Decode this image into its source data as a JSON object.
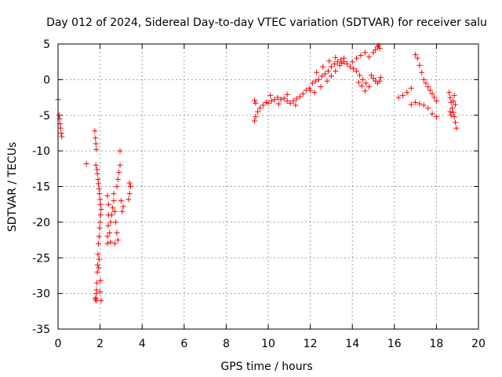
{
  "chart_data": {
    "type": "scatter",
    "title": "Day 012 of 2024, Sidereal Day-to-day VTEC variation (SDTVAR) for receiver salu",
    "xlabel": "GPS time / hours",
    "ylabel": "SDTVAR / TECUs",
    "xlim": [
      0,
      20
    ],
    "ylim": [
      -35,
      5
    ],
    "xticks": [
      0,
      2,
      4,
      6,
      8,
      10,
      12,
      14,
      16,
      18,
      20
    ],
    "yticks": [
      -35,
      -30,
      -25,
      -20,
      -15,
      -10,
      -5,
      0,
      5
    ],
    "grid": true,
    "marker": "+",
    "colors": {
      "series": "#ff0000",
      "axis": "#000000",
      "grid": "#a0a0a0"
    },
    "series": [
      {
        "name": "SDTVAR",
        "points": [
          [
            0.0,
            -2.8
          ],
          [
            0.05,
            -5.0
          ],
          [
            0.08,
            -5.5
          ],
          [
            0.1,
            -6.2
          ],
          [
            0.12,
            -6.8
          ],
          [
            0.15,
            -7.5
          ],
          [
            0.18,
            -8.0
          ],
          [
            1.35,
            -11.8
          ],
          [
            1.75,
            -7.2
          ],
          [
            1.78,
            -8.2
          ],
          [
            1.8,
            -9.0
          ],
          [
            1.82,
            -9.8
          ],
          [
            1.8,
            -12.0
          ],
          [
            1.85,
            -12.6
          ],
          [
            1.87,
            -13.2
          ],
          [
            1.9,
            -14.0
          ],
          [
            1.92,
            -14.6
          ],
          [
            1.95,
            -15.3
          ],
          [
            1.97,
            -16.0
          ],
          [
            2.0,
            -16.8
          ],
          [
            2.02,
            -17.5
          ],
          [
            2.05,
            -18.2
          ],
          [
            2.03,
            -19.0
          ],
          [
            2.0,
            -20.0
          ],
          [
            1.98,
            -20.8
          ],
          [
            1.95,
            -22.0
          ],
          [
            1.92,
            -23.0
          ],
          [
            1.9,
            -24.5
          ],
          [
            1.88,
            -26.0
          ],
          [
            1.87,
            -27.0
          ],
          [
            1.85,
            -28.5
          ],
          [
            1.83,
            -29.5
          ],
          [
            1.82,
            -30.0
          ],
          [
            1.8,
            -30.6
          ],
          [
            1.82,
            -31.0
          ],
          [
            1.78,
            -30.8
          ],
          [
            2.0,
            -29.8
          ],
          [
            2.05,
            -31.0
          ],
          [
            2.02,
            -28.2
          ],
          [
            1.95,
            -25.2
          ],
          [
            1.93,
            -26.4
          ],
          [
            2.35,
            -16.3
          ],
          [
            2.4,
            -17.5
          ],
          [
            2.4,
            -19.0
          ],
          [
            2.38,
            -20.5
          ],
          [
            2.35,
            -22.0
          ],
          [
            2.35,
            -23.0
          ],
          [
            2.45,
            -21.5
          ],
          [
            2.5,
            -20.0
          ],
          [
            2.55,
            -19.0
          ],
          [
            2.6,
            -18.0
          ],
          [
            2.65,
            -17.0
          ],
          [
            2.7,
            -18.5
          ],
          [
            2.75,
            -20.0
          ],
          [
            2.8,
            -21.5
          ],
          [
            2.85,
            -22.5
          ],
          [
            2.7,
            -23.0
          ],
          [
            2.8,
            -15.0
          ],
          [
            2.85,
            -14.0
          ],
          [
            2.9,
            -13.0
          ],
          [
            2.95,
            -12.0
          ],
          [
            2.95,
            -10.0
          ],
          [
            3.0,
            -17.0
          ],
          [
            3.1,
            -17.8
          ],
          [
            3.05,
            -18.5
          ],
          [
            2.65,
            -16.0
          ],
          [
            2.5,
            -22.8
          ],
          [
            3.4,
            -14.5
          ],
          [
            3.45,
            -15.0
          ],
          [
            3.4,
            -16.0
          ],
          [
            3.35,
            -16.8
          ],
          [
            9.35,
            -5.8
          ],
          [
            9.4,
            -5.2
          ],
          [
            9.5,
            -4.5
          ],
          [
            9.6,
            -4.0
          ],
          [
            9.75,
            -3.6
          ],
          [
            9.9,
            -3.2
          ],
          [
            10.0,
            -3.3
          ],
          [
            10.15,
            -3.0
          ],
          [
            10.3,
            -2.8
          ],
          [
            10.45,
            -2.5
          ],
          [
            10.6,
            -2.8
          ],
          [
            10.75,
            -2.6
          ],
          [
            10.9,
            -3.0
          ],
          [
            11.05,
            -3.3
          ],
          [
            11.2,
            -3.0
          ],
          [
            11.35,
            -2.7
          ],
          [
            11.5,
            -2.4
          ],
          [
            11.65,
            -2.0
          ],
          [
            11.8,
            -1.5
          ],
          [
            11.95,
            -1.2
          ],
          [
            9.35,
            -2.9
          ],
          [
            9.4,
            -3.3
          ],
          [
            10.1,
            -2.2
          ],
          [
            10.5,
            -3.4
          ],
          [
            10.9,
            -2.1
          ],
          [
            11.3,
            -3.6
          ],
          [
            12.0,
            -1.5
          ],
          [
            12.1,
            -0.5
          ],
          [
            12.25,
            -0.2
          ],
          [
            12.4,
            0.0
          ],
          [
            12.55,
            0.5
          ],
          [
            12.7,
            0.8
          ],
          [
            12.85,
            1.2
          ],
          [
            13.0,
            1.8
          ],
          [
            13.15,
            2.2
          ],
          [
            13.3,
            2.5
          ],
          [
            13.45,
            2.8
          ],
          [
            13.6,
            2.5
          ],
          [
            13.75,
            2.2
          ],
          [
            13.9,
            1.8
          ],
          [
            14.05,
            1.5
          ],
          [
            14.2,
            1.2
          ],
          [
            14.35,
            0.6
          ],
          [
            14.5,
            0.0
          ],
          [
            14.65,
            -0.5
          ],
          [
            14.8,
            -1.0
          ],
          [
            12.2,
            -1.8
          ],
          [
            12.5,
            -1.0
          ],
          [
            12.8,
            -0.2
          ],
          [
            13.0,
            0.5
          ],
          [
            13.2,
            1.2
          ],
          [
            13.4,
            2.0
          ],
          [
            13.6,
            3.0
          ],
          [
            13.5,
            2.3
          ],
          [
            12.3,
            1.0
          ],
          [
            12.6,
            1.8
          ],
          [
            12.9,
            2.6
          ],
          [
            13.2,
            3.1
          ],
          [
            14.0,
            2.5
          ],
          [
            14.2,
            3.0
          ],
          [
            14.4,
            3.4
          ],
          [
            14.6,
            3.8
          ],
          [
            14.8,
            3.2
          ],
          [
            15.0,
            3.8
          ],
          [
            15.1,
            4.2
          ],
          [
            15.2,
            4.6
          ],
          [
            15.25,
            4.8
          ],
          [
            15.3,
            4.4
          ],
          [
            14.9,
            0.6
          ],
          [
            15.0,
            0.2
          ],
          [
            15.1,
            -0.2
          ],
          [
            15.2,
            -0.5
          ],
          [
            15.3,
            -0.2
          ],
          [
            15.35,
            0.3
          ],
          [
            14.3,
            -0.4
          ],
          [
            14.45,
            -0.9
          ],
          [
            14.6,
            -1.6
          ],
          [
            16.2,
            -2.5
          ],
          [
            16.4,
            -2.2
          ],
          [
            16.6,
            -1.8
          ],
          [
            16.8,
            -1.2
          ],
          [
            16.8,
            -3.5
          ],
          [
            17.0,
            -3.2
          ],
          [
            17.2,
            -3.4
          ],
          [
            17.4,
            -3.6
          ],
          [
            17.6,
            -4.0
          ],
          [
            17.8,
            -4.8
          ],
          [
            18.0,
            -5.2
          ],
          [
            17.0,
            3.5
          ],
          [
            17.1,
            3.0
          ],
          [
            17.2,
            2.0
          ],
          [
            17.3,
            1.0
          ],
          [
            17.4,
            0.0
          ],
          [
            17.5,
            -0.5
          ],
          [
            17.6,
            -1.0
          ],
          [
            17.7,
            -1.5
          ],
          [
            17.8,
            -2.0
          ],
          [
            17.9,
            -2.5
          ],
          [
            18.0,
            -3.0
          ],
          [
            18.6,
            -1.8
          ],
          [
            18.65,
            -2.5
          ],
          [
            18.7,
            -3.2
          ],
          [
            18.75,
            -4.0
          ],
          [
            18.8,
            -4.6
          ],
          [
            18.85,
            -5.2
          ],
          [
            18.9,
            -6.0
          ],
          [
            18.95,
            -6.8
          ],
          [
            18.65,
            -4.5
          ],
          [
            18.7,
            -5.0
          ],
          [
            18.8,
            -3.0
          ],
          [
            18.9,
            -3.5
          ],
          [
            18.85,
            -2.2
          ]
        ]
      }
    ]
  }
}
